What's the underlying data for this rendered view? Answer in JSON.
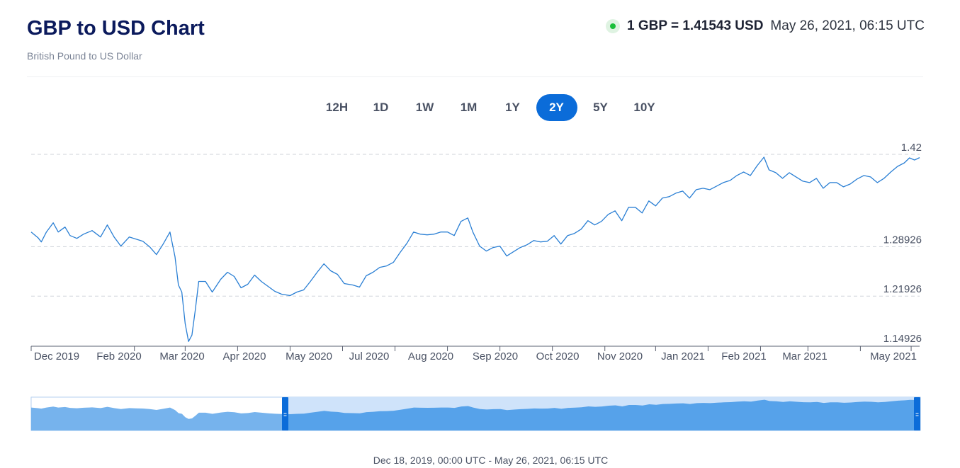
{
  "header": {
    "title": "GBP to USD Chart",
    "subtitle": "British Pound to US Dollar",
    "rate": "1 GBP = 1.41543 USD",
    "timestamp": "May 26, 2021, 06:15 UTC"
  },
  "periods": [
    {
      "label": "12H",
      "active": false
    },
    {
      "label": "1D",
      "active": false
    },
    {
      "label": "1W",
      "active": false
    },
    {
      "label": "1M",
      "active": false
    },
    {
      "label": "1Y",
      "active": false
    },
    {
      "label": "2Y",
      "active": true
    },
    {
      "label": "5Y",
      "active": false
    },
    {
      "label": "10Y",
      "active": false
    }
  ],
  "range_label": "Dec 18, 2019, 00:00 UTC - May 26, 2021, 06:15 UTC",
  "colors": {
    "line": "#2a7fd4",
    "accent": "#0b6cd9",
    "navigator_fill": "#4f9ee9",
    "navigator_selected": "#cfe3fa"
  },
  "chart_data": {
    "type": "line",
    "series": [
      {
        "values": [
          [
            "2019-12-18",
            1.31
          ],
          [
            "2019-12-22",
            1.302
          ],
          [
            "2019-12-24",
            1.296
          ],
          [
            "2019-12-27",
            1.31
          ],
          [
            "2019-12-31",
            1.323
          ],
          [
            "2020-01-03",
            1.31
          ],
          [
            "2020-01-07",
            1.317
          ],
          [
            "2020-01-10",
            1.305
          ],
          [
            "2020-01-14",
            1.301
          ],
          [
            "2020-01-18",
            1.307
          ],
          [
            "2020-01-23",
            1.312
          ],
          [
            "2020-01-28",
            1.303
          ],
          [
            "2020-02-01",
            1.32
          ],
          [
            "2020-02-05",
            1.303
          ],
          [
            "2020-02-09",
            1.29
          ],
          [
            "2020-02-14",
            1.303
          ],
          [
            "2020-02-18",
            1.3
          ],
          [
            "2020-02-22",
            1.297
          ],
          [
            "2020-02-26",
            1.289
          ],
          [
            "2020-03-01",
            1.278
          ],
          [
            "2020-03-05",
            1.293
          ],
          [
            "2020-03-09",
            1.31
          ],
          [
            "2020-03-12",
            1.275
          ],
          [
            "2020-03-14",
            1.235
          ],
          [
            "2020-03-16",
            1.225
          ],
          [
            "2020-03-18",
            1.18
          ],
          [
            "2020-03-20",
            1.155
          ],
          [
            "2020-03-22",
            1.164
          ],
          [
            "2020-03-24",
            1.2
          ],
          [
            "2020-03-26",
            1.24
          ],
          [
            "2020-03-30",
            1.24
          ],
          [
            "2020-04-03",
            1.225
          ],
          [
            "2020-04-08",
            1.243
          ],
          [
            "2020-04-12",
            1.253
          ],
          [
            "2020-04-16",
            1.247
          ],
          [
            "2020-04-20",
            1.231
          ],
          [
            "2020-04-24",
            1.236
          ],
          [
            "2020-04-28",
            1.249
          ],
          [
            "2020-05-02",
            1.24
          ],
          [
            "2020-05-06",
            1.233
          ],
          [
            "2020-05-10",
            1.226
          ],
          [
            "2020-05-14",
            1.222
          ],
          [
            "2020-05-19",
            1.22
          ],
          [
            "2020-05-23",
            1.225
          ],
          [
            "2020-05-27",
            1.228
          ],
          [
            "2020-05-31",
            1.24
          ],
          [
            "2020-06-04",
            1.253
          ],
          [
            "2020-06-08",
            1.265
          ],
          [
            "2020-06-12",
            1.255
          ],
          [
            "2020-06-16",
            1.25
          ],
          [
            "2020-06-20",
            1.237
          ],
          [
            "2020-06-25",
            1.235
          ],
          [
            "2020-06-29",
            1.232
          ],
          [
            "2020-07-03",
            1.248
          ],
          [
            "2020-07-07",
            1.253
          ],
          [
            "2020-07-11",
            1.26
          ],
          [
            "2020-07-15",
            1.262
          ],
          [
            "2020-07-19",
            1.267
          ],
          [
            "2020-07-23",
            1.281
          ],
          [
            "2020-07-27",
            1.294
          ],
          [
            "2020-07-31",
            1.31
          ],
          [
            "2020-08-04",
            1.307
          ],
          [
            "2020-08-08",
            1.306
          ],
          [
            "2020-08-12",
            1.307
          ],
          [
            "2020-08-16",
            1.31
          ],
          [
            "2020-08-20",
            1.31
          ],
          [
            "2020-08-24",
            1.305
          ],
          [
            "2020-08-28",
            1.325
          ],
          [
            "2020-09-01",
            1.33
          ],
          [
            "2020-09-04",
            1.31
          ],
          [
            "2020-09-08",
            1.29
          ],
          [
            "2020-09-12",
            1.283
          ],
          [
            "2020-09-16",
            1.288
          ],
          [
            "2020-09-20",
            1.29
          ],
          [
            "2020-09-24",
            1.276
          ],
          [
            "2020-09-28",
            1.282
          ],
          [
            "2020-10-02",
            1.288
          ],
          [
            "2020-10-06",
            1.292
          ],
          [
            "2020-10-10",
            1.298
          ],
          [
            "2020-10-14",
            1.296
          ],
          [
            "2020-10-18",
            1.297
          ],
          [
            "2020-10-22",
            1.305
          ],
          [
            "2020-10-26",
            1.293
          ],
          [
            "2020-10-30",
            1.305
          ],
          [
            "2020-11-03",
            1.308
          ],
          [
            "2020-11-07",
            1.314
          ],
          [
            "2020-11-11",
            1.326
          ],
          [
            "2020-11-15",
            1.32
          ],
          [
            "2020-11-19",
            1.325
          ],
          [
            "2020-11-23",
            1.335
          ],
          [
            "2020-11-27",
            1.34
          ],
          [
            "2020-12-01",
            1.326
          ],
          [
            "2020-12-05",
            1.345
          ],
          [
            "2020-12-09",
            1.345
          ],
          [
            "2020-12-13",
            1.337
          ],
          [
            "2020-12-17",
            1.354
          ],
          [
            "2020-12-21",
            1.347
          ],
          [
            "2020-12-25",
            1.358
          ],
          [
            "2020-12-29",
            1.36
          ],
          [
            "2021-01-02",
            1.365
          ],
          [
            "2021-01-06",
            1.368
          ],
          [
            "2021-01-10",
            1.358
          ],
          [
            "2021-01-14",
            1.37
          ],
          [
            "2021-01-18",
            1.372
          ],
          [
            "2021-01-22",
            1.37
          ],
          [
            "2021-01-26",
            1.375
          ],
          [
            "2021-01-30",
            1.38
          ],
          [
            "2021-02-03",
            1.383
          ],
          [
            "2021-02-07",
            1.39
          ],
          [
            "2021-02-11",
            1.395
          ],
          [
            "2021-02-15",
            1.39
          ],
          [
            "2021-02-19",
            1.404
          ],
          [
            "2021-02-23",
            1.416
          ],
          [
            "2021-02-26",
            1.398
          ],
          [
            "2021-03-02",
            1.394
          ],
          [
            "2021-03-06",
            1.386
          ],
          [
            "2021-03-10",
            1.394
          ],
          [
            "2021-03-14",
            1.388
          ],
          [
            "2021-03-18",
            1.382
          ],
          [
            "2021-03-22",
            1.38
          ],
          [
            "2021-03-26",
            1.386
          ],
          [
            "2021-03-30",
            1.372
          ],
          [
            "2021-04-03",
            1.38
          ],
          [
            "2021-04-07",
            1.38
          ],
          [
            "2021-04-11",
            1.374
          ],
          [
            "2021-04-15",
            1.378
          ],
          [
            "2021-04-19",
            1.385
          ],
          [
            "2021-04-23",
            1.39
          ],
          [
            "2021-04-27",
            1.388
          ],
          [
            "2021-05-01",
            1.38
          ],
          [
            "2021-05-05",
            1.386
          ],
          [
            "2021-05-09",
            1.395
          ],
          [
            "2021-05-13",
            1.403
          ],
          [
            "2021-05-17",
            1.408
          ],
          [
            "2021-05-20",
            1.415
          ],
          [
            "2021-05-23",
            1.412
          ],
          [
            "2021-05-26",
            1.41543
          ]
        ]
      }
    ],
    "x_ticks": [
      "Dec 2019",
      "Feb 2020",
      "Mar 2020",
      "Apr 2020",
      "May 2020",
      "Jul 2020",
      "Aug 2020",
      "Sep 2020",
      "Oct 2020",
      "Nov 2020",
      "Jan 2021",
      "Feb 2021",
      "Mar 2021",
      "May 2021"
    ],
    "y_ticks": [
      "1.42",
      "1.28926",
      "1.21926",
      "1.14926"
    ],
    "ylim": [
      1.14926,
      1.42
    ],
    "xlim": [
      "2019-12-18",
      "2021-05-26"
    ],
    "grid": "horizontal dashed",
    "xlabel": "",
    "ylabel": ""
  }
}
